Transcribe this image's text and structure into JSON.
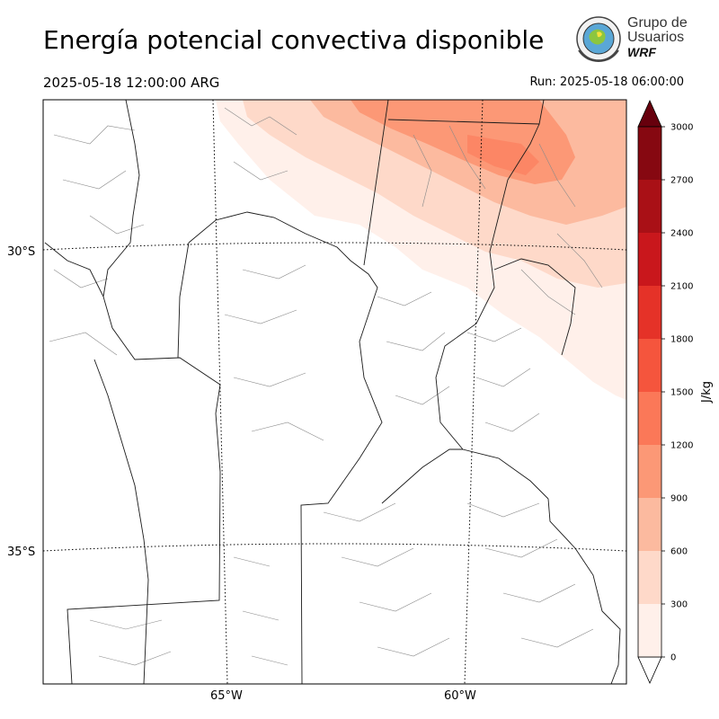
{
  "header": {
    "title": "Energía potencial convectiva disponible",
    "valid_time": "2025-05-18 12:00:00 ARG",
    "run_time": "Run: 2025-05-18 06:00:00"
  },
  "logo": {
    "line1": "Grupo de",
    "line2": "Usuarios",
    "line3": "WRF"
  },
  "map": {
    "lat_labels": [
      "30°S",
      "35°S"
    ],
    "lon_labels": [
      "65°W",
      "60°W"
    ]
  },
  "colorbar": {
    "unit": "J/kg",
    "ticks": [
      "0",
      "300",
      "600",
      "900",
      "1200",
      "1500",
      "1800",
      "2100",
      "2400",
      "2700",
      "3000"
    ],
    "colors": [
      "#fff0ea",
      "#fed9c9",
      "#fcba9f",
      "#fc9876",
      "#fb7858",
      "#f5553d",
      "#e53228",
      "#c9171c",
      "#a91016",
      "#860811"
    ],
    "under_color": "#ffffff",
    "over_color": "#67000d"
  }
}
